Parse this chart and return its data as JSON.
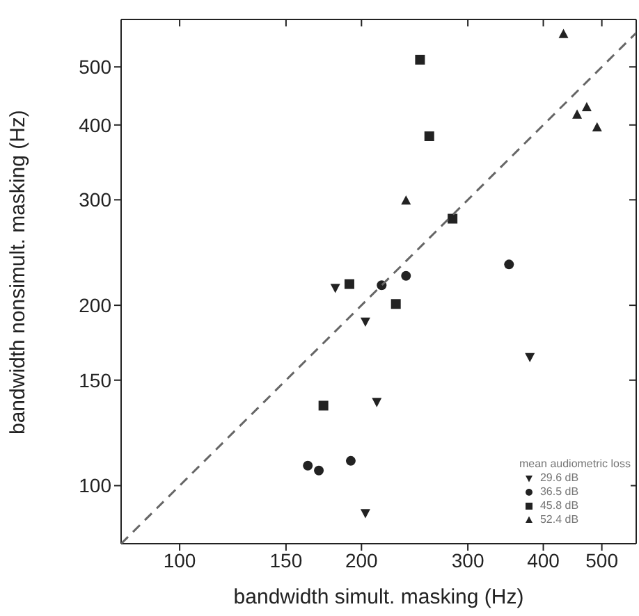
{
  "chart_data": {
    "type": "scatter",
    "xlabel": "bandwidth simult. masking (Hz)",
    "ylabel": "bandwidth nonsimult. masking (Hz)",
    "legend_title": "mean audiometric loss",
    "log": "xy",
    "xlim": [
      80,
      570
    ],
    "ylim": [
      80,
      600
    ],
    "xticks": [
      100,
      150,
      200,
      300,
      400,
      500
    ],
    "yticks": [
      100,
      150,
      200,
      300,
      400,
      500
    ],
    "legend": "bottom right",
    "series": [
      {
        "name": "29.6 dB",
        "color": "#222222",
        "marker": "triangle-down",
        "x": [
          181,
          203,
          380,
          212,
          203
        ],
        "values": [
          214,
          188,
          164,
          138,
          90
        ]
      },
      {
        "name": "36.5 dB",
        "color": "#222222",
        "marker": "circle",
        "x": [
          351,
          237,
          216,
          163,
          170,
          192
        ],
        "values": [
          234,
          224,
          216,
          108,
          106,
          110
        ]
      },
      {
        "name": "45.8 dB",
        "color": "#222222",
        "marker": "square",
        "x": [
          250,
          259,
          283,
          191,
          228,
          173
        ],
        "values": [
          514,
          383,
          279,
          217,
          201,
          136
        ]
      },
      {
        "name": "52.4 dB",
        "color": "#222222",
        "marker": "triangle",
        "x": [
          432,
          455,
          472,
          491,
          237
        ],
        "values": [
          567,
          416,
          428,
          396,
          299
        ]
      },
      {
        "type": "line",
        "color": "#666666",
        "line_style": "dashed",
        "marker": "none",
        "x": [
          80,
          570
        ],
        "values": [
          80,
          570
        ]
      }
    ]
  }
}
